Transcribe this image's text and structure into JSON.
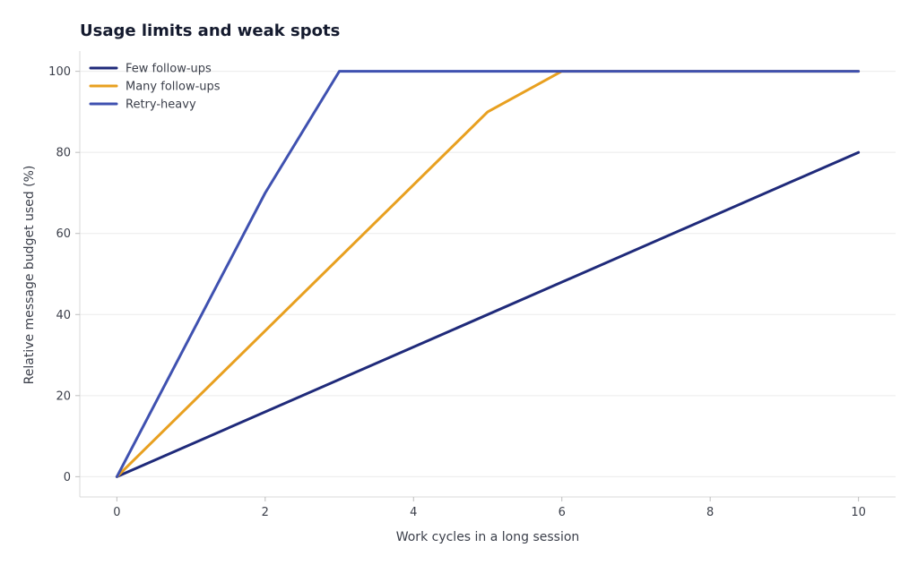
{
  "chart_data": {
    "type": "line",
    "title": "Usage limits and weak spots",
    "xlabel": "Work cycles in a long session",
    "ylabel": "Relative message budget used (%)",
    "xlim": [
      -0.5,
      10.5
    ],
    "ylim": [
      -5,
      105
    ],
    "xticks": [
      0,
      2,
      4,
      6,
      8,
      10
    ],
    "yticks": [
      0,
      20,
      40,
      60,
      80,
      100
    ],
    "grid": "horizontal",
    "legend": "top-left",
    "series": [
      {
        "name": "Few follow-ups",
        "color": "#1f2a7a",
        "x": [
          0,
          10
        ],
        "y": [
          0,
          80
        ]
      },
      {
        "name": "Many follow-ups",
        "color": "#e8a020",
        "x": [
          0,
          5,
          6,
          10
        ],
        "y": [
          0,
          90,
          100,
          100
        ]
      },
      {
        "name": "Retry-heavy",
        "color": "#3f51b0",
        "x": [
          0,
          2,
          3,
          10
        ],
        "y": [
          0,
          70,
          100,
          100
        ]
      }
    ]
  }
}
